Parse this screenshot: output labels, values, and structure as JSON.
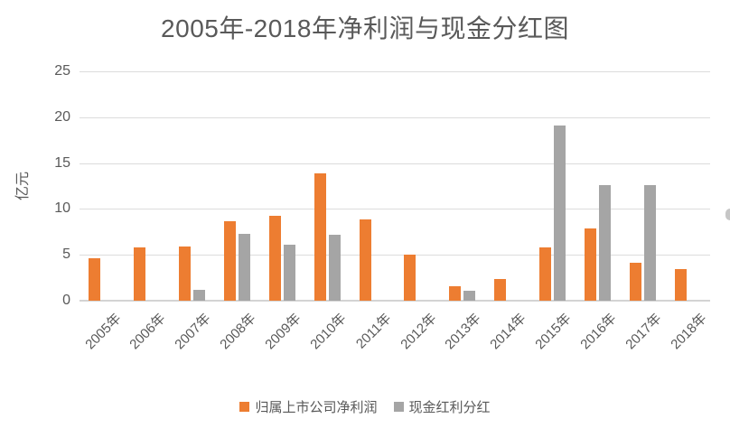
{
  "title": "2005年-2018年净利润与现金分红图",
  "chart_data": {
    "type": "bar",
    "title": "2005年-2018年净利润与现金分红图",
    "categories": [
      "2005年",
      "2006年",
      "2007年",
      "2008年",
      "2009年",
      "2010年",
      "2011年",
      "2012年",
      "2013年",
      "2014年",
      "2015年",
      "2016年",
      "2017年",
      "2018年"
    ],
    "series": [
      {
        "name": "归属上市公司净利润",
        "color": "#ED7D31",
        "values": [
          4.6,
          5.8,
          5.9,
          8.7,
          9.3,
          13.9,
          8.9,
          5.0,
          1.6,
          2.4,
          5.8,
          7.9,
          4.1,
          3.4
        ]
      },
      {
        "name": "现金红利分红",
        "color": "#A5A5A5",
        "values": [
          0,
          0,
          1.2,
          7.3,
          6.1,
          7.2,
          0,
          0,
          1.1,
          0,
          19.1,
          12.6,
          12.6,
          0
        ]
      }
    ],
    "xlabel": "",
    "ylabel": "亿元",
    "ylim": [
      0,
      25
    ],
    "yticks": [
      0,
      5,
      10,
      15,
      20,
      25
    ],
    "grid": true,
    "legend_position": "bottom"
  },
  "styles": {
    "text_color": "#595959",
    "gridline_color": "#DCDCDC",
    "axis_color": "#D4D4D4",
    "background": "#FFFFFF"
  }
}
